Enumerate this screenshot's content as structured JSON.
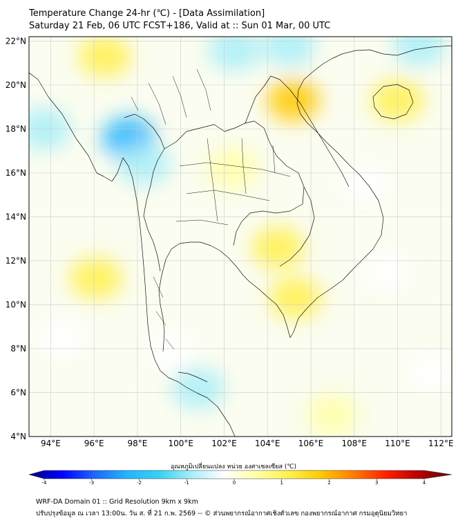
{
  "header": {
    "title_line1": "Temperature Change 24-hr (℃) - [Data Assimilation]",
    "title_line2": "Saturday 21 Feb, 06 UTC FCST+186, Valid at :: Sun 01 Mar, 00 UTC"
  },
  "map": {
    "lat_labels": [
      "22°N",
      "20°N",
      "18°N",
      "16°N",
      "14°N",
      "12°N",
      "10°N",
      "8°N",
      "6°N",
      "4°N"
    ],
    "lon_labels": [
      "94°E",
      "96°E",
      "98°E",
      "100°E",
      "102°E",
      "104°E",
      "106°E",
      "108°E",
      "110°E",
      "112°E"
    ],
    "lat_values": [
      22,
      20,
      18,
      16,
      14,
      12,
      10,
      8,
      6,
      4
    ],
    "lon_values": [
      94,
      96,
      98,
      100,
      102,
      104,
      106,
      108,
      110,
      112
    ],
    "lon_range": [
      93,
      112.5
    ],
    "lat_range": [
      4,
      22.2
    ]
  },
  "colorbar": {
    "title": "อุณหภูมิเปลี่ยนแปลง หน่วย องศาเซลเซียส (℃)",
    "ticks": [
      "-4",
      "-3",
      "-2",
      "-1",
      "0",
      "1",
      "2",
      "3",
      "4"
    ],
    "tick_values": [
      -4,
      -3,
      -2,
      -1,
      0,
      1,
      2,
      3,
      4
    ],
    "colors": [
      "#00007a",
      "#0000ff",
      "#1e64ff",
      "#22b4ff",
      "#35d2f5",
      "#a8eef8",
      "#ffffff",
      "#ffffa8",
      "#fff04d",
      "#ffc800",
      "#ff7a00",
      "#ff1e00",
      "#b40000",
      "#640000"
    ]
  },
  "field": [
    {
      "lon": 96.5,
      "lat": 21.3,
      "v": 0.9
    },
    {
      "lon": 102.5,
      "lat": 21.6,
      "v": -0.9
    },
    {
      "lon": 105,
      "lat": 21.8,
      "v": -1.1
    },
    {
      "lon": 111,
      "lat": 21.8,
      "v": -0.8
    },
    {
      "lon": 105.2,
      "lat": 19.3,
      "v": 1.5
    },
    {
      "lon": 110,
      "lat": 19.3,
      "v": 0.9
    },
    {
      "lon": 97.6,
      "lat": 17.6,
      "v": -2.2
    },
    {
      "lon": 98.3,
      "lat": 16.4,
      "v": -1.1
    },
    {
      "lon": 93.7,
      "lat": 18,
      "v": -1
    },
    {
      "lon": 102.4,
      "lat": 16.2,
      "v": 0.6
    },
    {
      "lon": 104.5,
      "lat": 12.6,
      "v": 1.1
    },
    {
      "lon": 105.3,
      "lat": 10.3,
      "v": 0.8
    },
    {
      "lon": 96.1,
      "lat": 11.2,
      "v": 0.8
    },
    {
      "lon": 99.5,
      "lat": 8,
      "v": -0.5
    },
    {
      "lon": 100.8,
      "lat": 6.2,
      "v": -1.1
    },
    {
      "lon": 109.5,
      "lat": 11.5,
      "v": -0.6
    },
    {
      "lon": 111.5,
      "lat": 7,
      "v": -0.5
    },
    {
      "lon": 107,
      "lat": 5,
      "v": 0.4
    },
    {
      "lon": 94.5,
      "lat": 8.5,
      "v": -0.6
    },
    {
      "lon": 108.5,
      "lat": 15.5,
      "v": -0.5
    }
  ],
  "footer": {
    "line1": "WRF-DA Domain 01 :: Grid Resolution 9km x 9km",
    "line2": "ปรับปรุงข้อมูล ณ เวลา 13:00น. วัน ส. ที่ 21 ก.พ. 2569 -- © ส่วนพยากรณ์อากาศเชิงตัวเลข กองพยากรณ์อากาศ กรมอุตุนิยมวิทยา"
  }
}
